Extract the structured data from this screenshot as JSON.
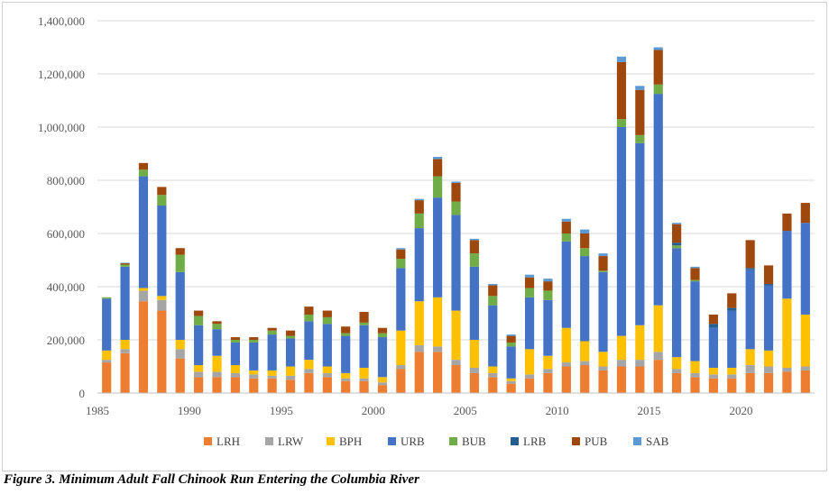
{
  "caption": "Figure 3. Minimum Adult Fall Chinook Run Entering the Columbia River",
  "chart_data": {
    "type": "bar",
    "stacked": true,
    "x": [
      1985,
      1986,
      1987,
      1988,
      1989,
      1990,
      1991,
      1992,
      1993,
      1994,
      1995,
      1996,
      1997,
      1998,
      1999,
      2000,
      2001,
      2002,
      2003,
      2004,
      2005,
      2006,
      2007,
      2008,
      2009,
      2010,
      2011,
      2012,
      2013,
      2014,
      2015,
      2016,
      2017,
      2018,
      2019,
      2020,
      2021,
      2022,
      2023
    ],
    "x_tick_labels": [
      "1985",
      "1990",
      "1995",
      "2000",
      "2005",
      "2010",
      "2015",
      "2020"
    ],
    "x_tick_years": [
      1985,
      1990,
      1995,
      2000,
      2005,
      2010,
      2015,
      2020
    ],
    "ylim": [
      0,
      1400000
    ],
    "y_ticks": [
      0,
      200000,
      400000,
      600000,
      800000,
      1000000,
      1200000,
      1400000
    ],
    "y_tick_labels": [
      "0",
      "200,000",
      "400,000",
      "600,000",
      "800,000",
      "1,000,000",
      "1,200,000",
      "1,400,000"
    ],
    "grid": true,
    "legend_position": "bottom",
    "series": [
      {
        "name": "LRH",
        "color": "#ED7D31",
        "values": [
          115000,
          150000,
          345000,
          310000,
          130000,
          60000,
          60000,
          60000,
          55000,
          55000,
          50000,
          75000,
          60000,
          45000,
          45000,
          30000,
          90000,
          155000,
          155000,
          105000,
          75000,
          60000,
          35000,
          55000,
          75000,
          100000,
          105000,
          85000,
          100000,
          100000,
          125000,
          75000,
          60000,
          55000,
          55000,
          75000,
          75000,
          80000,
          85000
        ]
      },
      {
        "name": "LRW",
        "color": "#A5A5A5",
        "values": [
          10000,
          15000,
          40000,
          40000,
          35000,
          20000,
          20000,
          15000,
          15000,
          10000,
          15000,
          15000,
          15000,
          10000,
          10000,
          10000,
          15000,
          25000,
          20000,
          20000,
          20000,
          15000,
          10000,
          15000,
          15000,
          15000,
          15000,
          15000,
          25000,
          25000,
          30000,
          15000,
          15000,
          15000,
          15000,
          30000,
          25000,
          15000,
          15000
        ]
      },
      {
        "name": "BPH",
        "color": "#FFC000",
        "values": [
          35000,
          35000,
          10000,
          15000,
          35000,
          25000,
          60000,
          30000,
          15000,
          20000,
          35000,
          35000,
          25000,
          20000,
          40000,
          20000,
          130000,
          165000,
          185000,
          185000,
          105000,
          25000,
          10000,
          95000,
          50000,
          130000,
          75000,
          55000,
          90000,
          130000,
          175000,
          45000,
          45000,
          25000,
          25000,
          60000,
          60000,
          260000,
          195000
        ]
      },
      {
        "name": "URB",
        "color": "#4472C4",
        "values": [
          195000,
          275000,
          420000,
          340000,
          255000,
          150000,
          100000,
          85000,
          105000,
          135000,
          105000,
          145000,
          160000,
          140000,
          160000,
          150000,
          235000,
          275000,
          375000,
          360000,
          275000,
          230000,
          120000,
          195000,
          210000,
          325000,
          320000,
          300000,
          785000,
          685000,
          795000,
          410000,
          300000,
          150000,
          215000,
          300000,
          245000,
          255000,
          345000
        ]
      },
      {
        "name": "BUB",
        "color": "#70AD47",
        "values": [
          5000,
          8000,
          25000,
          40000,
          65000,
          35000,
          20000,
          10000,
          10000,
          15000,
          10000,
          25000,
          25000,
          10000,
          10000,
          15000,
          35000,
          55000,
          80000,
          50000,
          50000,
          35000,
          15000,
          35000,
          35000,
          30000,
          30000,
          5000,
          30000,
          30000,
          35000,
          10000,
          5000,
          0,
          0,
          0,
          0,
          0,
          0
        ]
      },
      {
        "name": "LRB",
        "color": "#255E91",
        "values": [
          0,
          0,
          0,
          0,
          0,
          0,
          0,
          0,
          0,
          0,
          0,
          0,
          0,
          0,
          0,
          0,
          0,
          0,
          0,
          0,
          0,
          0,
          0,
          0,
          0,
          0,
          0,
          0,
          0,
          0,
          0,
          10000,
          0,
          15000,
          10000,
          5000,
          5000,
          0,
          0
        ]
      },
      {
        "name": "PUB",
        "color": "#9E480E",
        "values": [
          0,
          5000,
          25000,
          30000,
          25000,
          20000,
          10000,
          10000,
          10000,
          10000,
          20000,
          30000,
          25000,
          25000,
          40000,
          20000,
          35000,
          50000,
          65000,
          70000,
          50000,
          40000,
          25000,
          40000,
          35000,
          45000,
          55000,
          55000,
          215000,
          170000,
          130000,
          70000,
          45000,
          35000,
          55000,
          105000,
          70000,
          65000,
          75000
        ]
      },
      {
        "name": "SAB",
        "color": "#5B9BD5",
        "values": [
          0,
          2000,
          0,
          0,
          0,
          0,
          0,
          0,
          0,
          0,
          0,
          0,
          0,
          0,
          0,
          0,
          5000,
          5000,
          8000,
          5000,
          5000,
          5000,
          5000,
          10000,
          10000,
          10000,
          15000,
          10000,
          20000,
          15000,
          10000,
          5000,
          5000,
          0,
          0,
          0,
          0,
          0,
          0
        ]
      }
    ]
  }
}
